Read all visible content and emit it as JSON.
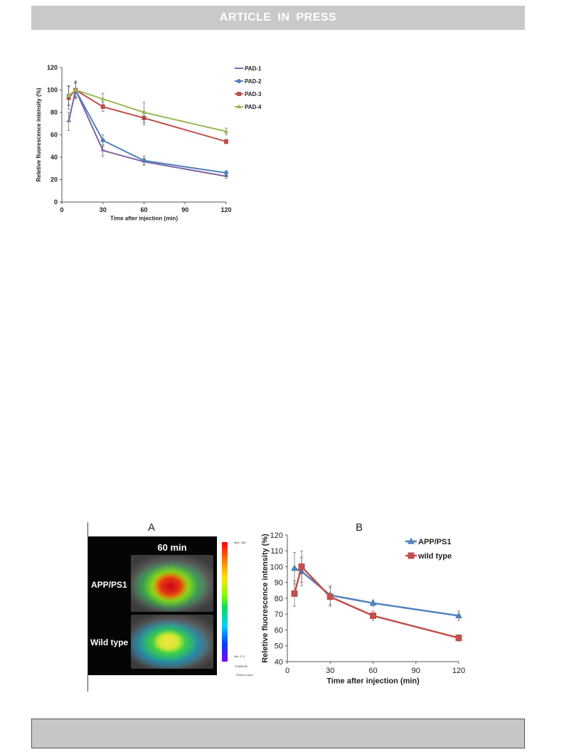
{
  "header": {
    "banner": "ARTICLE IN PRESS"
  },
  "chart_data": [
    {
      "type": "line",
      "title": "",
      "xlabel": "Time after injection (min)",
      "ylabel": "Reletive fluorescence intensity (%)",
      "xlim": [
        0,
        120
      ],
      "ylim": [
        0,
        120
      ],
      "xticks": [
        0,
        30,
        60,
        90,
        120
      ],
      "yticks": [
        0,
        20,
        40,
        60,
        80,
        100,
        120
      ],
      "legend_position": "top-right",
      "series": [
        {
          "name": "PAD-1",
          "color": "#8064a2",
          "marker": "dash",
          "x": [
            5,
            10,
            30,
            60,
            120
          ],
          "y": [
            72,
            100,
            46,
            36,
            23
          ],
          "err": [
            8,
            6,
            5,
            3,
            2
          ]
        },
        {
          "name": "PAD-2",
          "color": "#4f81bd",
          "marker": "circle",
          "x": [
            5,
            10,
            30,
            60,
            120
          ],
          "y": [
            95,
            100,
            55,
            37,
            26
          ],
          "err": [
            8,
            7,
            5,
            4,
            2
          ]
        },
        {
          "name": "PAD-3",
          "color": "#c0504d",
          "marker": "square",
          "x": [
            5,
            10,
            30,
            60,
            120
          ],
          "y": [
            93,
            100,
            85,
            75,
            54
          ],
          "err": [
            10,
            8,
            4,
            6,
            2
          ]
        },
        {
          "name": "PAD-4",
          "color": "#9bbb59",
          "marker": "triangle",
          "x": [
            5,
            10,
            30,
            60,
            120
          ],
          "y": [
            95,
            100,
            92,
            80,
            63
          ],
          "err": [
            9,
            7,
            5,
            9,
            3
          ]
        }
      ]
    },
    {
      "type": "line",
      "panel_label": "B",
      "title": "",
      "xlabel": "Time after injection (min)",
      "ylabel": "Reletive fluorescence intensity (%)",
      "xlim": [
        0,
        120
      ],
      "ylim": [
        40,
        120
      ],
      "xticks": [
        0,
        30,
        60,
        90,
        120
      ],
      "yticks": [
        40,
        50,
        60,
        70,
        80,
        90,
        100,
        110,
        120
      ],
      "legend_position": "top-right",
      "series": [
        {
          "name": "APP/PS1",
          "color": "#4f81bd",
          "marker": "triangle",
          "x": [
            5,
            10,
            30,
            60,
            120
          ],
          "y": [
            99,
            97,
            82,
            77,
            69
          ],
          "err": [
            10,
            9,
            6,
            2,
            3
          ]
        },
        {
          "name": "wild type",
          "color": "#c0504d",
          "marker": "square",
          "x": [
            5,
            10,
            30,
            60,
            120
          ],
          "y": [
            83,
            100,
            81,
            69,
            55
          ],
          "err": [
            8,
            10,
            6,
            3,
            2
          ]
        }
      ]
    }
  ],
  "image_panel": {
    "panel_label": "A",
    "title": "60 min",
    "row_top": "APP/PS1",
    "row_bottom": "Wild type",
    "colorbar_max": "Max: 485",
    "colorbar_min": "Min: 171",
    "colorbar_scale": "31568758",
    "colorbar_units": "Photon count"
  }
}
